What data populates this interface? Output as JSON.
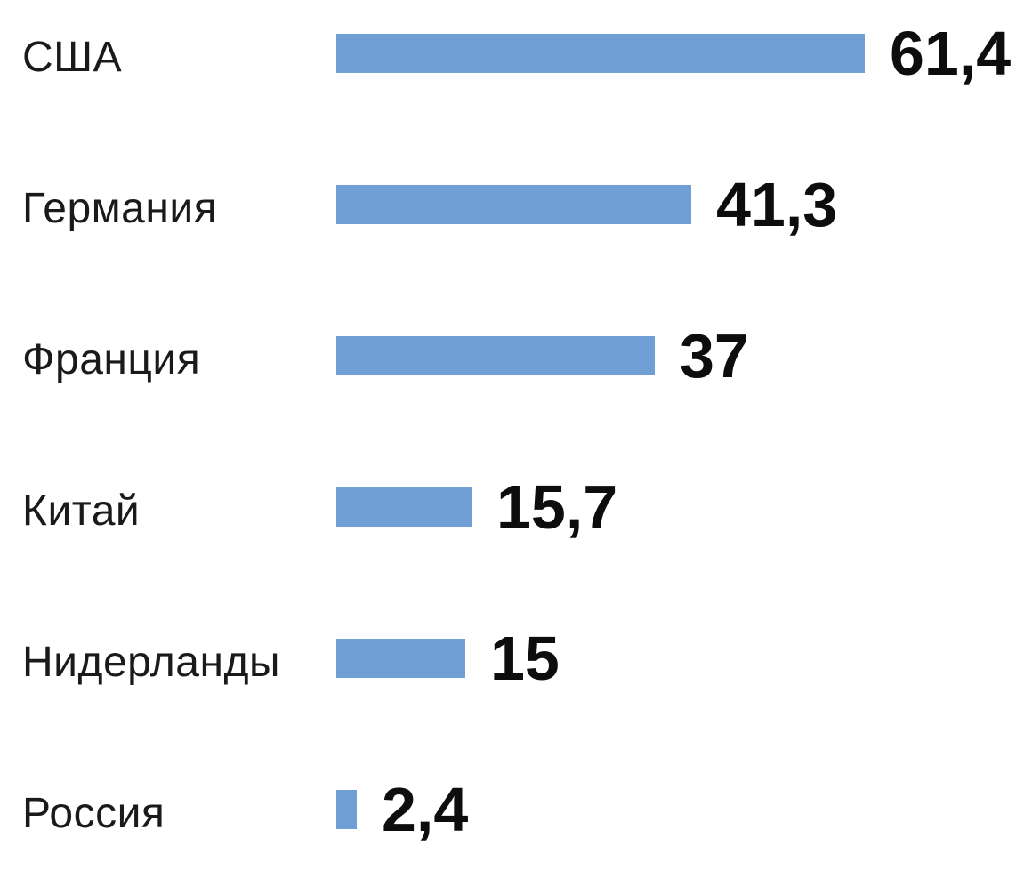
{
  "chart_data": {
    "type": "bar",
    "orientation": "horizontal",
    "title": "",
    "xlabel": "",
    "ylabel": "",
    "categories": [
      "США",
      "Германия",
      "Франция",
      "Китай",
      "Нидерланды",
      "Россия"
    ],
    "values": [
      61.4,
      41.3,
      37,
      15.7,
      15,
      2.4
    ],
    "value_labels": [
      "61,4",
      "41,3",
      "37",
      "15,7",
      "15",
      "2,4"
    ],
    "xlim": [
      0,
      63
    ],
    "grid": false,
    "legend": "none",
    "decimal_separator": ",",
    "bar_color": "#6f9fd5",
    "category_label_color": "#1a1a1a",
    "value_label_color": "#0d0d0d",
    "background_color": "#ffffff"
  }
}
